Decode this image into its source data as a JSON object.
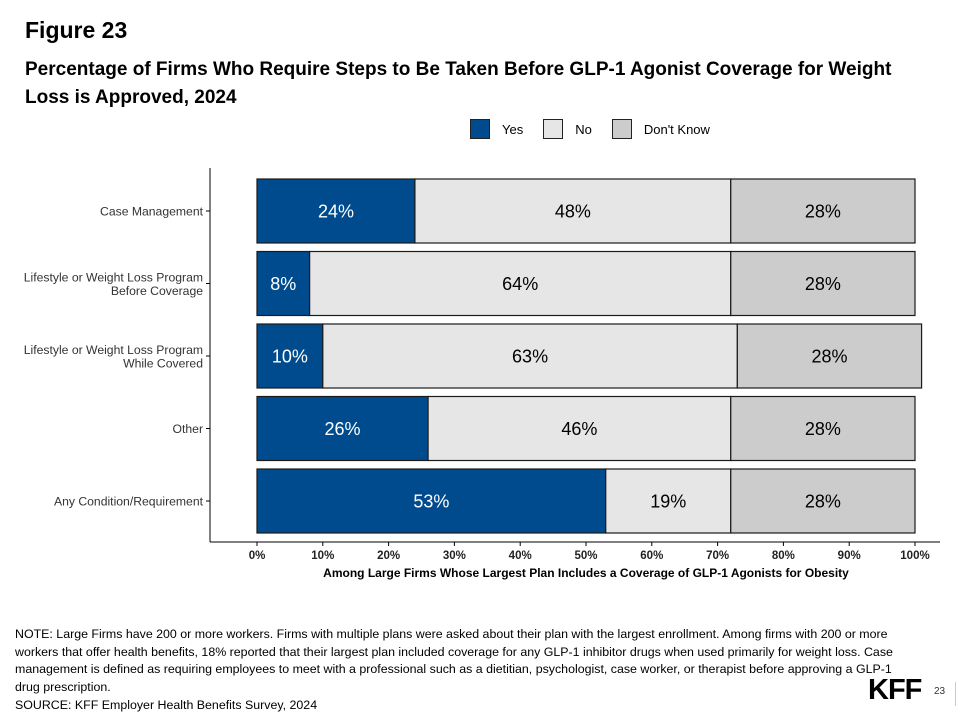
{
  "figure_label": "Figure 23",
  "title": "Percentage of Firms Who Require Steps to Be Taken Before GLP-1 Agonist Coverage for Weight Loss is Approved, 2024",
  "legend": [
    {
      "label": "Yes",
      "color": "#004B8D"
    },
    {
      "label": "No",
      "color": "#E6E6E6"
    },
    {
      "label": "Don't Know",
      "color": "#CCCCCC"
    }
  ],
  "chart_data": {
    "type": "bar",
    "orientation": "horizontal",
    "stacked": true,
    "title": "Percentage of Firms Who Require Steps to Be Taken Before GLP-1 Agonist Coverage for Weight Loss is Approved, 2024",
    "categories": [
      [
        "Case Management"
      ],
      [
        "Lifestyle or Weight Loss Program",
        "Before Coverage"
      ],
      [
        "Lifestyle or Weight Loss Program",
        "While Covered"
      ],
      [
        "Other"
      ],
      [
        "Any Condition/Requirement"
      ]
    ],
    "series": [
      {
        "name": "Yes",
        "color": "#004B8D",
        "label_color": "#FFFFFF",
        "values": [
          24,
          8,
          10,
          26,
          53
        ]
      },
      {
        "name": "No",
        "color": "#E6E6E6",
        "label_color": "#000000",
        "values": [
          48,
          64,
          63,
          46,
          19
        ]
      },
      {
        "name": "Don't Know",
        "color": "#CCCCCC",
        "label_color": "#000000",
        "values": [
          28,
          28,
          28,
          28,
          28
        ]
      }
    ],
    "xlabel": "Among Large Firms Whose Largest Plan Includes a Coverage of GLP-1 Agonists for Obesity",
    "ylabel": "",
    "xlim": [
      0,
      100
    ],
    "x_ticks": [
      "0%",
      "10%",
      "20%",
      "30%",
      "40%",
      "50%",
      "60%",
      "70%",
      "80%",
      "90%",
      "100%"
    ],
    "value_suffix": "%",
    "legend_position": "top-right",
    "grid": false
  },
  "note": "NOTE: Large Firms have 200 or more workers.  Firms with multiple plans were asked about their plan with the largest enrollment.  Among firms with 200 or more workers that offer health benefits, 18% reported that their largest plan included coverage for any GLP-1 inhibitor drugs when used primarily for weight loss. Case management is defined as requiring employees to meet with a professional such as a dietitian, psychologist, case worker, or therapist before approving a GLP-1 drug prescription.",
  "source": "SOURCE: KFF Employer Health Benefits Survey, 2024",
  "logo": "KFF",
  "page_number": "23"
}
